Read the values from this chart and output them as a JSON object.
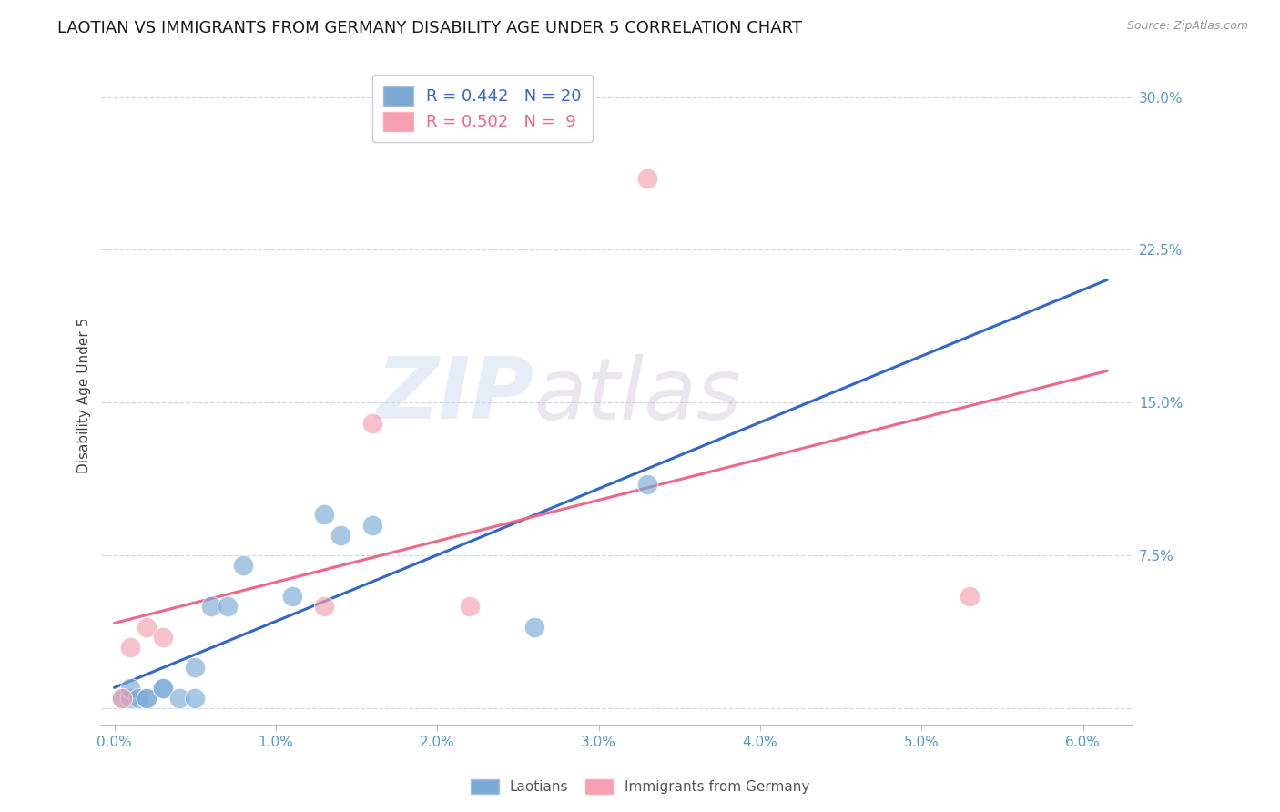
{
  "title": "LAOTIAN VS IMMIGRANTS FROM GERMANY DISABILITY AGE UNDER 5 CORRELATION CHART",
  "source": "Source: ZipAtlas.com",
  "ylabel": "Disability Age Under 5",
  "laotian_R": 0.442,
  "laotian_N": 20,
  "germany_R": 0.502,
  "germany_N": 9,
  "laotian_color": "#7aaad4",
  "germany_color": "#f4a0b0",
  "laotian_line_color": "#3366cc",
  "germany_line_color": "#ee6688",
  "axis_label_color": "#5599cc",
  "ytick_labels": [
    "",
    "7.5%",
    "15.0%",
    "22.5%",
    "30.0%"
  ],
  "ytick_values": [
    0.0,
    0.075,
    0.15,
    0.225,
    0.3
  ],
  "xtick_labels": [
    "0.0%",
    "1.0%",
    "2.0%",
    "3.0%",
    "4.0%",
    "5.0%",
    "6.0%"
  ],
  "xtick_values": [
    0.0,
    0.01,
    0.02,
    0.03,
    0.04,
    0.05,
    0.06
  ],
  "laotian_x": [
    0.0005,
    0.001,
    0.001,
    0.0015,
    0.002,
    0.002,
    0.003,
    0.003,
    0.004,
    0.005,
    0.005,
    0.006,
    0.007,
    0.008,
    0.011,
    0.013,
    0.014,
    0.016,
    0.026,
    0.033
  ],
  "laotian_y": [
    0.005,
    0.005,
    0.01,
    0.005,
    0.005,
    0.005,
    0.01,
    0.01,
    0.005,
    0.005,
    0.02,
    0.05,
    0.05,
    0.07,
    0.055,
    0.095,
    0.085,
    0.09,
    0.04,
    0.11
  ],
  "germany_x": [
    0.0005,
    0.001,
    0.002,
    0.003,
    0.013,
    0.016,
    0.022,
    0.033,
    0.053
  ],
  "germany_y": [
    0.005,
    0.03,
    0.04,
    0.035,
    0.05,
    0.14,
    0.05,
    0.26,
    0.055
  ],
  "background_color": "#ffffff",
  "watermark_zip": "ZIP",
  "watermark_atlas": "atlas",
  "grid_color": "#d0d8e8",
  "title_fontsize": 13,
  "axis_fontsize": 11,
  "legend_fontsize": 13
}
